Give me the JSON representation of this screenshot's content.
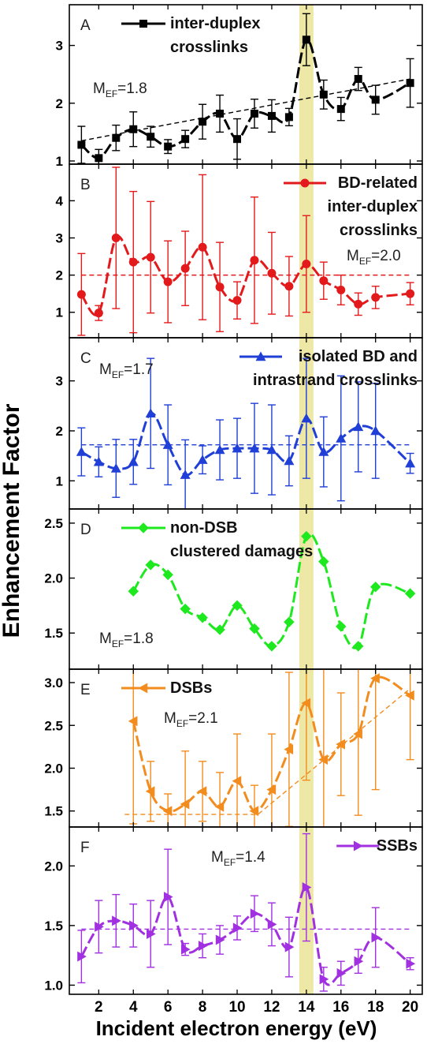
{
  "figure": {
    "ylabel": "Enhancement  Factor",
    "xlabel": "Incident electron energy (eV)",
    "x_ticks": [
      2,
      4,
      6,
      8,
      10,
      12,
      14,
      16,
      18,
      20
    ],
    "xlim": [
      0.3,
      20.7
    ],
    "highlight_x": 14,
    "highlight_color": "#e8e08a"
  },
  "chart_data": [
    {
      "type": "line",
      "panel_letter": "A",
      "color": "#000000",
      "marker": "square",
      "legend": [
        "inter-duplex",
        "crosslinks"
      ],
      "legend_pos": "top-left",
      "mef_base": "M",
      "mef_sub": "EF",
      "mef_value": "=1.8",
      "ylim": [
        1,
        3.65
      ],
      "y_ticks": [
        1,
        2,
        3
      ],
      "x": [
        1,
        2,
        3,
        4,
        5,
        6,
        7,
        8,
        9,
        10,
        11,
        12,
        13,
        14,
        15,
        16,
        17,
        18,
        19,
        20
      ],
      "values": [
        1.28,
        1.05,
        1.4,
        1.55,
        1.42,
        1.25,
        1.38,
        1.68,
        1.82,
        1.38,
        1.82,
        1.78,
        1.76,
        3.1,
        2.15,
        1.9,
        2.42,
        2.06,
        null,
        2.35
      ],
      "error": [
        0.32,
        0.15,
        0.22,
        0.3,
        0.18,
        0.12,
        0.15,
        0.3,
        0.32,
        0.35,
        0.25,
        0.28,
        0.15,
        0.45,
        0.25,
        0.2,
        0.2,
        0.25,
        null,
        0.42
      ],
      "trend": [
        [
          1,
          1.35
        ],
        [
          20,
          2.42
        ]
      ]
    },
    {
      "type": "line",
      "panel_letter": "B",
      "color": "#e31a1c",
      "marker": "circle",
      "legend": [
        "BD-related",
        "inter-duplex",
        "crosslinks"
      ],
      "legend_pos": "top-right",
      "mef_base": "M",
      "mef_sub": "EF",
      "mef_value": "=2.0",
      "ylim": [
        0.4,
        4.9
      ],
      "y_ticks": [
        1,
        2,
        3,
        4
      ],
      "x": [
        1,
        2,
        3,
        4,
        5,
        6,
        7,
        8,
        9,
        10,
        11,
        12,
        13,
        14,
        15,
        16,
        17,
        18,
        19,
        20
      ],
      "values": [
        1.48,
        0.98,
        3.0,
        2.35,
        2.48,
        1.82,
        2.18,
        2.75,
        1.68,
        1.32,
        2.4,
        2.05,
        1.7,
        2.3,
        1.85,
        1.6,
        1.22,
        1.4,
        null,
        1.5
      ],
      "error": [
        1.1,
        0.2,
        1.9,
        1.9,
        1.5,
        1.1,
        1.0,
        1.95,
        1.2,
        0.5,
        1.7,
        1.1,
        0.8,
        1.3,
        0.5,
        0.4,
        0.3,
        0.3,
        null,
        0.3
      ],
      "trend": [
        [
          1,
          2.0
        ],
        [
          20,
          2.0
        ]
      ]
    },
    {
      "type": "line",
      "panel_letter": "C",
      "color": "#1f3fd6",
      "marker": "triangle-up",
      "legend": [
        "isolated BD and",
        "intrastrand crosslinks"
      ],
      "legend_pos": "top-right",
      "mef_base": "M",
      "mef_sub": "EF",
      "mef_value": "=1.7",
      "ylim": [
        0.5,
        3.8
      ],
      "y_ticks": [
        1,
        2,
        3
      ],
      "x": [
        1,
        2,
        3,
        4,
        5,
        6,
        7,
        8,
        9,
        10,
        11,
        12,
        13,
        14,
        15,
        16,
        17,
        18,
        19,
        20
      ],
      "values": [
        1.58,
        1.38,
        1.25,
        1.38,
        2.35,
        1.72,
        1.12,
        1.42,
        1.62,
        1.65,
        1.65,
        1.62,
        1.4,
        2.25,
        1.58,
        1.85,
        2.08,
        2.0,
        null,
        1.35
      ],
      "error": [
        0.48,
        0.3,
        0.58,
        0.45,
        1.1,
        0.8,
        0.7,
        0.28,
        0.6,
        0.6,
        0.9,
        0.9,
        0.5,
        1.2,
        0.7,
        1.25,
        0.9,
        0.95,
        null,
        0.2
      ],
      "trend": [
        [
          1,
          1.72
        ],
        [
          20,
          1.72
        ]
      ]
    },
    {
      "type": "line",
      "panel_letter": "D",
      "color": "#1ee81e",
      "marker": "diamond",
      "legend": [
        "non-DSB",
        "clustered damages"
      ],
      "legend_pos": "top-left",
      "mef_base": "M",
      "mef_sub": "EF",
      "mef_value": "=1.8",
      "ylim": [
        1.2,
        2.6
      ],
      "y_ticks": [
        1.5,
        2.0,
        2.5
      ],
      "x": [
        4,
        5,
        6,
        7,
        8,
        9,
        10,
        11,
        12,
        13,
        14,
        15,
        16,
        17,
        18,
        20
      ],
      "values": [
        1.88,
        2.12,
        2.03,
        1.72,
        1.64,
        1.53,
        1.75,
        1.54,
        1.38,
        1.6,
        2.38,
        2.15,
        1.56,
        1.38,
        1.92,
        1.86
      ],
      "error": [],
      "trend": []
    },
    {
      "type": "line",
      "panel_letter": "E",
      "color": "#f28c1e",
      "marker": "triangle-left",
      "legend": [
        "DSBs"
      ],
      "legend_pos": "top-left",
      "mef_base": "M",
      "mef_sub": "EF",
      "mef_value": "=2.1",
      "ylim": [
        1.35,
        3.12
      ],
      "y_ticks": [
        1.5,
        2.0,
        2.5,
        3.0
      ],
      "x": [
        4,
        5,
        6,
        7,
        8,
        9,
        10,
        11,
        12,
        13,
        14,
        15,
        16,
        17,
        18,
        20
      ],
      "values": [
        2.55,
        1.73,
        1.5,
        1.58,
        1.73,
        1.55,
        1.85,
        1.5,
        1.75,
        2.22,
        2.76,
        2.1,
        2.28,
        2.4,
        3.05,
        2.85
      ],
      "error": [
        1.2,
        0.35,
        0.2,
        0.62,
        0.35,
        0.4,
        0.55,
        0.3,
        0.65,
        0.9,
        0.9,
        1.3,
        0.6,
        0.95,
        1.3,
        0.75
      ],
      "trend": [
        [
          3.5,
          1.46
        ],
        [
          11.2,
          1.46
        ],
        [
          20,
          2.93
        ]
      ]
    },
    {
      "type": "line",
      "panel_letter": "F",
      "color": "#a030e0",
      "marker": "triangle-right",
      "legend": [
        "SSBs"
      ],
      "legend_pos": "top-right",
      "mef_base": "M",
      "mef_sub": "EF",
      "mef_value": "=1.4",
      "ylim": [
        0.95,
        2.3
      ],
      "y_ticks": [
        1.0,
        1.5,
        2.0
      ],
      "x": [
        1,
        2,
        3,
        4,
        5,
        6,
        7,
        8,
        9,
        10,
        11,
        12,
        13,
        14,
        15,
        16,
        17,
        18,
        19,
        20
      ],
      "values": [
        1.24,
        1.49,
        1.54,
        1.5,
        1.43,
        1.74,
        1.3,
        1.33,
        1.38,
        1.48,
        1.6,
        1.51,
        1.32,
        1.82,
        1.05,
        1.1,
        1.2,
        1.4,
        null,
        1.18
      ],
      "error": [
        0.22,
        0.22,
        0.22,
        0.18,
        0.28,
        0.4,
        0.05,
        0.1,
        0.12,
        0.1,
        0.15,
        0.18,
        0.25,
        0.45,
        0.1,
        0.1,
        0.1,
        0.25,
        null,
        0.05
      ],
      "trend": [
        [
          1,
          1.47
        ],
        [
          20,
          1.47
        ]
      ]
    }
  ]
}
